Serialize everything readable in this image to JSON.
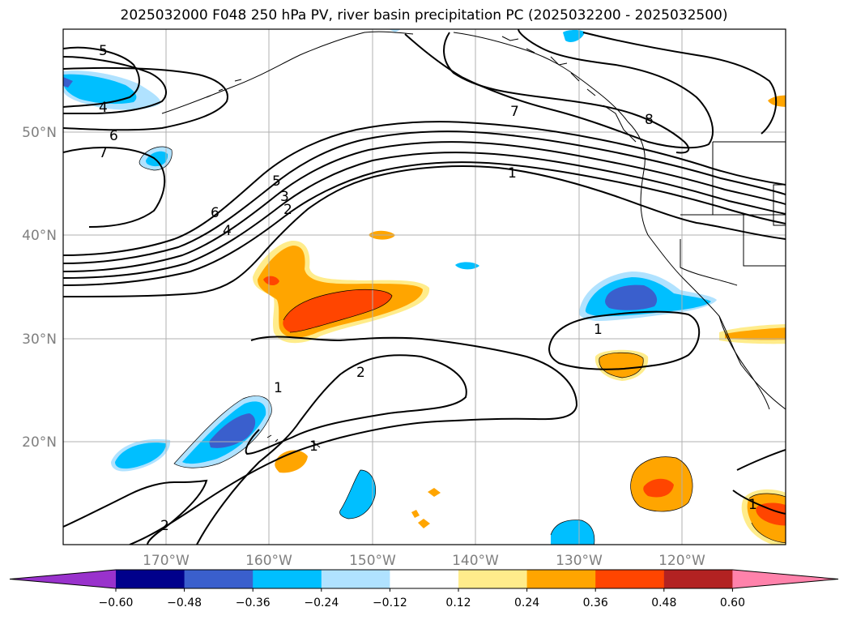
{
  "title": "2025032000 F048 250 hPa PV, river basin precipitation PC (2025032200 - 2025032500)",
  "map": {
    "lat_labels": [
      "50°N",
      "40°N",
      "30°N",
      "20°N"
    ],
    "lon_labels": [
      "170°W",
      "160°W",
      "150°W",
      "140°W",
      "130°W",
      "120°W"
    ],
    "contour_labels": [
      "5",
      "4",
      "6",
      "7",
      "5",
      "3",
      "2",
      "6",
      "4",
      "7",
      "8",
      "1",
      "1",
      "2",
      "1",
      "1",
      "2",
      "1"
    ]
  },
  "colorbar": {
    "ticks": [
      "−0.60",
      "−0.48",
      "−0.36",
      "−0.24",
      "−0.12",
      "0.12",
      "0.24",
      "0.36",
      "0.48",
      "0.60"
    ],
    "colors": [
      "#9932cc",
      "#00008b",
      "#3a5fcd",
      "#00bfff",
      "#b0e2ff",
      "#ffffff",
      "#ffec8b",
      "#ffa500",
      "#ff4500",
      "#b22222",
      "#ff82ab"
    ]
  },
  "colors": {
    "pos_light": "#ffec8b",
    "pos_mid": "#ffa500",
    "pos_strong": "#ff4500",
    "neg_light": "#b0e2ff",
    "neg_mid": "#00bfff",
    "neg_strong": "#3a5fcd"
  }
}
